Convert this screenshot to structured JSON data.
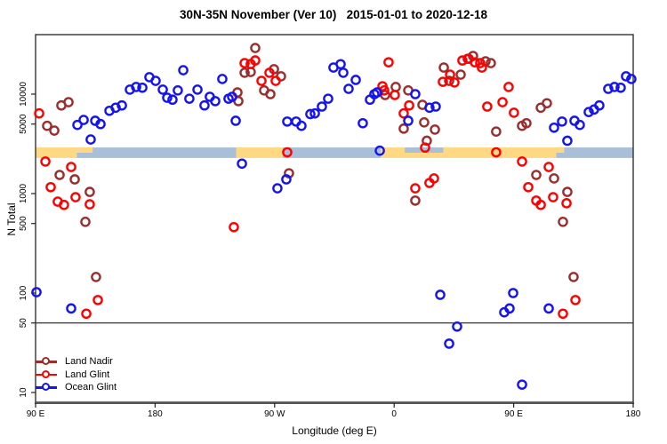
{
  "title": "30N-35N November (Ver 10)   2015-01-01 to 2020-12-18",
  "chart_data": {
    "type": "scatter",
    "title": "30N-35N November (Ver 10)   2015-01-01 to 2020-12-18",
    "xlabel": "Longitude (deg E)",
    "ylabel": "N Total",
    "x_axis": {
      "description": "longitude axis wrapping 450 degrees eastward from 90E",
      "span_deg": 450,
      "ticks": [
        {
          "deg": 0,
          "label": "90 E"
        },
        {
          "deg": 90,
          "label": "180"
        },
        {
          "deg": 180,
          "label": "90 W"
        },
        {
          "deg": 270,
          "label": "0"
        },
        {
          "deg": 360,
          "label": "90 E"
        },
        {
          "deg": 450,
          "label": "180"
        }
      ]
    },
    "y_axis": {
      "scale": "log10",
      "range": [
        8,
        32000
      ],
      "ticks": [
        10000,
        5000,
        1000,
        500,
        100,
        50,
        10
      ]
    },
    "reference_line": 50,
    "surface_band": {
      "value_range": [
        2280,
        2910
      ],
      "colors": {
        "land": "#FFD883",
        "ocean": "#A9BFD9"
      },
      "segments": [
        {
          "from": 0,
          "to": 31,
          "surface": "land"
        },
        {
          "from": 31,
          "to": 151,
          "surface": "ocean"
        },
        {
          "from": 151,
          "to": 186,
          "surface": "land"
        },
        {
          "from": 186,
          "to": 260,
          "surface": "ocean"
        },
        {
          "from": 260,
          "to": 392,
          "surface": "land"
        },
        {
          "from": 392,
          "to": 450,
          "surface": "ocean"
        }
      ],
      "patches": [
        {
          "from": 31,
          "to": 43,
          "surface": "land",
          "half": "top"
        },
        {
          "from": 278,
          "to": 307,
          "surface": "ocean",
          "half": "top"
        },
        {
          "from": 391,
          "to": 398,
          "surface": "land",
          "half": "top"
        }
      ]
    },
    "legend": {
      "position": "bottom-left",
      "entries": [
        "Land Nadir",
        "Land Glint",
        "Ocean Glint"
      ]
    },
    "series": [
      {
        "name": "Land Nadir",
        "color": "#9B2D2D",
        "points": [
          [
            8.7,
            4800
          ],
          [
            14.1,
            4300
          ],
          [
            19.4,
            7700
          ],
          [
            24.8,
            8300
          ],
          [
            18.1,
            1540
          ],
          [
            29.5,
            1390
          ],
          [
            40.8,
            1040
          ],
          [
            37.5,
            520
          ],
          [
            152.0,
            10400
          ],
          [
            152.7,
            8500
          ],
          [
            165.4,
            29100
          ],
          [
            157.4,
            16400
          ],
          [
            162.0,
            16700
          ],
          [
            172.1,
            10900
          ],
          [
            179.5,
            17800
          ],
          [
            184.8,
            15100
          ],
          [
            176.8,
            10000
          ],
          [
            190.8,
            1600
          ],
          [
            263.2,
            9800
          ],
          [
            271.2,
            11800
          ],
          [
            280.6,
            10900
          ],
          [
            291.3,
            7800
          ],
          [
            277.2,
            4500
          ],
          [
            292.6,
            5200
          ],
          [
            300.7,
            4400
          ],
          [
            294.6,
            3400
          ],
          [
            285.9,
            850
          ],
          [
            307.4,
            18500
          ],
          [
            311.4,
            13600
          ],
          [
            320.1,
            15700
          ],
          [
            325.4,
            22700
          ],
          [
            329.4,
            24200
          ],
          [
            338.8,
            21400
          ],
          [
            342.8,
            20500
          ],
          [
            346.8,
            4200
          ],
          [
            366.3,
            4800
          ],
          [
            369.6,
            5100
          ],
          [
            380.4,
            7300
          ],
          [
            385.0,
            8100
          ],
          [
            377.0,
            1540
          ],
          [
            390.4,
            1420
          ],
          [
            400.4,
            1040
          ],
          [
            397.1,
            520
          ],
          [
            405.1,
            145
          ],
          [
            45.5,
            145
          ]
        ]
      },
      {
        "name": "Land Glint",
        "color": "#FF0000",
        "points": [
          [
            2.7,
            6400
          ],
          [
            7.4,
            2100
          ],
          [
            26.8,
            1850
          ],
          [
            11.4,
            1160
          ],
          [
            30.1,
            920
          ],
          [
            16.7,
            830
          ],
          [
            21.4,
            770
          ],
          [
            40.8,
            780
          ],
          [
            46.9,
            85
          ],
          [
            38.2,
            62
          ],
          [
            157.4,
            20500
          ],
          [
            162.0,
            20100
          ],
          [
            165.4,
            21800
          ],
          [
            170.1,
            13600
          ],
          [
            176.1,
            16400
          ],
          [
            180.8,
            13600
          ],
          [
            189.5,
            2600
          ],
          [
            149.3,
            460
          ],
          [
            265.8,
            20900
          ],
          [
            261.2,
            12000
          ],
          [
            262.5,
            10900
          ],
          [
            270.5,
            9800
          ],
          [
            281.3,
            7700
          ],
          [
            277.2,
            6400
          ],
          [
            293.3,
            2900
          ],
          [
            300.0,
            1420
          ],
          [
            296.6,
            1280
          ],
          [
            285.9,
            1130
          ],
          [
            312.1,
            15700
          ],
          [
            306.7,
            13300
          ],
          [
            315.4,
            13100
          ],
          [
            321.4,
            21800
          ],
          [
            326.1,
            22700
          ],
          [
            330.8,
            20900
          ],
          [
            334.8,
            20500
          ],
          [
            336.1,
            18500
          ],
          [
            340.1,
            7500
          ],
          [
            346.8,
            2600
          ],
          [
            356.2,
            11800
          ],
          [
            351.6,
            8300
          ],
          [
            360.2,
            6500
          ],
          [
            366.3,
            2100
          ],
          [
            386.4,
            1850
          ],
          [
            371.0,
            1160
          ],
          [
            389.7,
            920
          ],
          [
            377.0,
            850
          ],
          [
            380.4,
            770
          ],
          [
            399.8,
            800
          ],
          [
            397.1,
            62
          ],
          [
            406.5,
            85
          ]
        ]
      },
      {
        "name": "Ocean Glint",
        "color": "#1414F0",
        "points": [
          [
            0.7,
            102
          ],
          [
            26.8,
            70
          ],
          [
            31.5,
            4900
          ],
          [
            36.2,
            5500
          ],
          [
            44.9,
            5400
          ],
          [
            48.9,
            5000
          ],
          [
            41.5,
            3500
          ],
          [
            55.6,
            6800
          ],
          [
            60.3,
            7300
          ],
          [
            65.0,
            7700
          ],
          [
            71.0,
            11100
          ],
          [
            75.7,
            11800
          ],
          [
            80.4,
            11600
          ],
          [
            85.7,
            14800
          ],
          [
            90.4,
            13600
          ],
          [
            95.8,
            11100
          ],
          [
            99.1,
            9200
          ],
          [
            103.1,
            8800
          ],
          [
            107.1,
            10900
          ],
          [
            111.2,
            17400
          ],
          [
            115.8,
            9000
          ],
          [
            121.9,
            11100
          ],
          [
            127.2,
            7700
          ],
          [
            131.2,
            9400
          ],
          [
            135.3,
            8500
          ],
          [
            140.6,
            14200
          ],
          [
            145.3,
            9000
          ],
          [
            148.0,
            9400
          ],
          [
            150.7,
            5400
          ],
          [
            155.4,
            2000
          ],
          [
            182.1,
            1130
          ],
          [
            188.8,
            1390
          ],
          [
            189.5,
            5300
          ],
          [
            196.2,
            5300
          ],
          [
            200.2,
            4800
          ],
          [
            206.9,
            6300
          ],
          [
            210.3,
            6400
          ],
          [
            215.6,
            7500
          ],
          [
            220.3,
            9000
          ],
          [
            224.3,
            18500
          ],
          [
            229.7,
            20000
          ],
          [
            231.7,
            16400
          ],
          [
            235.7,
            11300
          ],
          [
            241.1,
            13900
          ],
          [
            246.4,
            5100
          ],
          [
            251.8,
            8800
          ],
          [
            255.1,
            10000
          ],
          [
            257.1,
            10400
          ],
          [
            259.2,
            2700
          ],
          [
            280.6,
            5400
          ],
          [
            285.9,
            10000
          ],
          [
            296.6,
            7300
          ],
          [
            301.3,
            7500
          ],
          [
            304.7,
            96
          ],
          [
            311.4,
            31
          ],
          [
            317.4,
            46
          ],
          [
            352.9,
            64
          ],
          [
            356.9,
            70
          ],
          [
            359.6,
            100
          ],
          [
            366.3,
            12
          ],
          [
            386.4,
            70
          ],
          [
            390.4,
            4600
          ],
          [
            396.4,
            5300
          ],
          [
            400.4,
            3400
          ],
          [
            405.8,
            5400
          ],
          [
            409.8,
            4900
          ],
          [
            416.5,
            6600
          ],
          [
            420.5,
            7000
          ],
          [
            424.5,
            7700
          ],
          [
            431.2,
            11300
          ],
          [
            435.9,
            11800
          ],
          [
            440.6,
            11600
          ],
          [
            444.6,
            15100
          ],
          [
            448.6,
            14200
          ]
        ]
      }
    ]
  }
}
